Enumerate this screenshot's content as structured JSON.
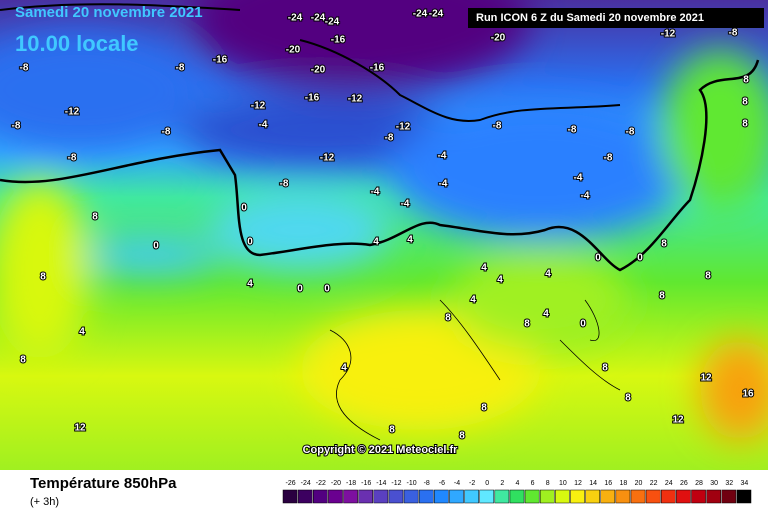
{
  "header": {
    "date": "Samedi 20 novembre 2021",
    "time": "10.00 locale",
    "run": "Run ICON 6 Z du Samedi 20 novembre 2021"
  },
  "copyright": "Copyright © 2021 Meteociel.fr",
  "footer": {
    "title": "Température 850hPa",
    "step": "(+ 3h)"
  },
  "scale": {
    "ticks": [
      -26,
      -24,
      -22,
      -20,
      -18,
      -16,
      -14,
      -12,
      -10,
      -8,
      -6,
      -4,
      -2,
      0,
      2,
      4,
      6,
      8,
      10,
      12,
      14,
      16,
      18,
      20,
      22,
      24,
      26,
      28,
      30,
      32,
      34
    ],
    "colors": [
      "#2a0040",
      "#3c0060",
      "#520080",
      "#6a0090",
      "#7d10a0",
      "#6a30b0",
      "#5a40c0",
      "#4a50d0",
      "#3a60e0",
      "#2a70f0",
      "#2088ff",
      "#30a8ff",
      "#40c8ff",
      "#60e8ff",
      "#40e8a0",
      "#30e060",
      "#60e830",
      "#a0f020",
      "#d8f810",
      "#f8f010",
      "#f8d010",
      "#f8b010",
      "#f89010",
      "#f87010",
      "#f85010",
      "#f03010",
      "#e01010",
      "#c00010",
      "#a00010",
      "#700010",
      "#000000"
    ]
  },
  "map_labels": [
    "-24",
    "-24",
    "-24",
    "-24",
    "-24",
    "-20",
    "-20",
    "-20",
    "-16",
    "-16",
    "-16",
    "-16",
    "-12",
    "-12",
    "-12",
    "-12",
    "-12",
    "-12",
    "-8",
    "-8",
    "-8",
    "-8",
    "-8",
    "-8",
    "-8",
    "-8",
    "-8",
    "-8",
    "-8",
    "-8",
    "-4",
    "-4",
    "-4",
    "-4",
    "-4",
    "-4",
    "-4",
    "-4",
    "0",
    "0",
    "0",
    "0",
    "0",
    "0",
    "0",
    "0",
    "4",
    "4",
    "4",
    "4",
    "4",
    "4",
    "4",
    "4",
    "4",
    "4",
    "8",
    "8",
    "8",
    "8",
    "8",
    "8",
    "8",
    "8",
    "8",
    "8",
    "8",
    "8",
    "8",
    "8",
    "8",
    "8",
    "12",
    "12",
    "12",
    "16"
  ]
}
